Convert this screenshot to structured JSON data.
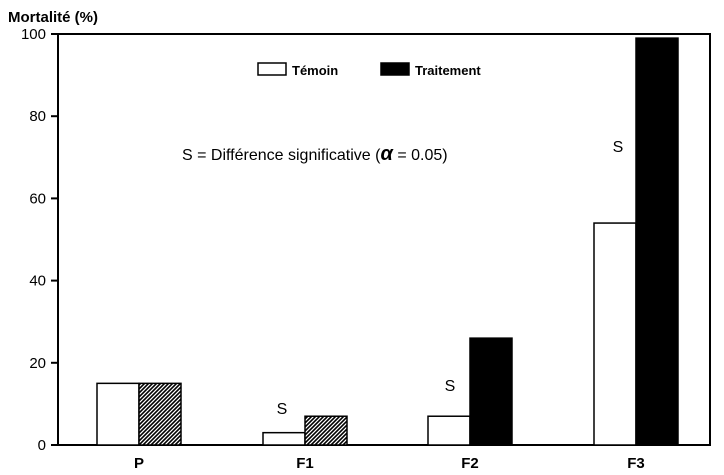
{
  "chart_data": {
    "type": "bar",
    "ylabel": "Mortalité  (%)",
    "ylim": [
      0,
      100
    ],
    "yticks": [
      0,
      20,
      40,
      60,
      80,
      100
    ],
    "categories": [
      "P",
      "F1",
      "F2",
      "F3"
    ],
    "series": [
      {
        "name": "Témoin",
        "values": [
          15,
          3,
          7,
          54
        ],
        "color": "#ffffff"
      },
      {
        "name": "Traitement",
        "values": [
          15,
          7,
          26,
          99
        ],
        "color": "#000000"
      }
    ],
    "legend_position": "top-center",
    "grid": false,
    "annotation": "S = Différence significative (",
    "annotation_symbol": "α",
    "annotation_suffix": " = 0.05)",
    "significance_label": "S",
    "significant_categories": [
      false,
      true,
      true,
      true
    ]
  }
}
